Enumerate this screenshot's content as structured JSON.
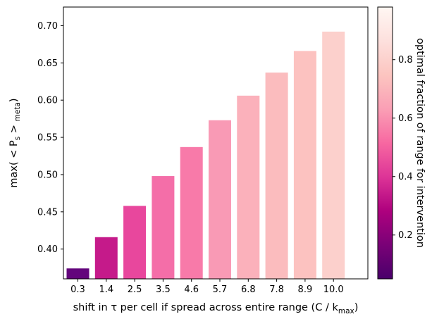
{
  "chart_data": {
    "type": "bar",
    "categories": [
      "0.3",
      "1.4",
      "2.5",
      "3.5",
      "4.6",
      "5.7",
      "6.8",
      "7.8",
      "8.9",
      "10.0"
    ],
    "values": [
      0.374,
      0.416,
      0.458,
      0.498,
      0.537,
      0.573,
      0.606,
      0.637,
      0.666,
      0.692
    ],
    "bar_colors": [
      "#63057c",
      "#c51a8a",
      "#e8479d",
      "#f46ea8",
      "#f87aa9",
      "#f99ab5",
      "#fbb1bb",
      "#fbbcbe",
      "#fcc2c0",
      "#fcd0cc"
    ],
    "xlabel": "shift in τ per cell if spread across entire range (C / k",
    "xlabel_sub": "max",
    "xlabel_end": ")",
    "ylabel_pre": "max( < P",
    "ylabel_sub1": "s",
    "ylabel_mid": " > ",
    "ylabel_sub2": "meta",
    "ylabel_end": ")",
    "ylim": [
      0.36,
      0.725
    ],
    "yticks": [
      "0.40",
      "0.45",
      "0.50",
      "0.55",
      "0.60",
      "0.65",
      "0.70"
    ],
    "colorbar": {
      "label": "optimal fraction of range for intervention",
      "range": [
        0.05,
        0.98
      ],
      "ticks": [
        "0.2",
        "0.4",
        "0.6",
        "0.8"
      ],
      "stops": [
        "#49006a",
        "#7a0177",
        "#ae017e",
        "#dd3497",
        "#f768a1",
        "#fa9fb5",
        "#fcc5c0",
        "#fde0dd",
        "#fff7f3"
      ]
    }
  }
}
